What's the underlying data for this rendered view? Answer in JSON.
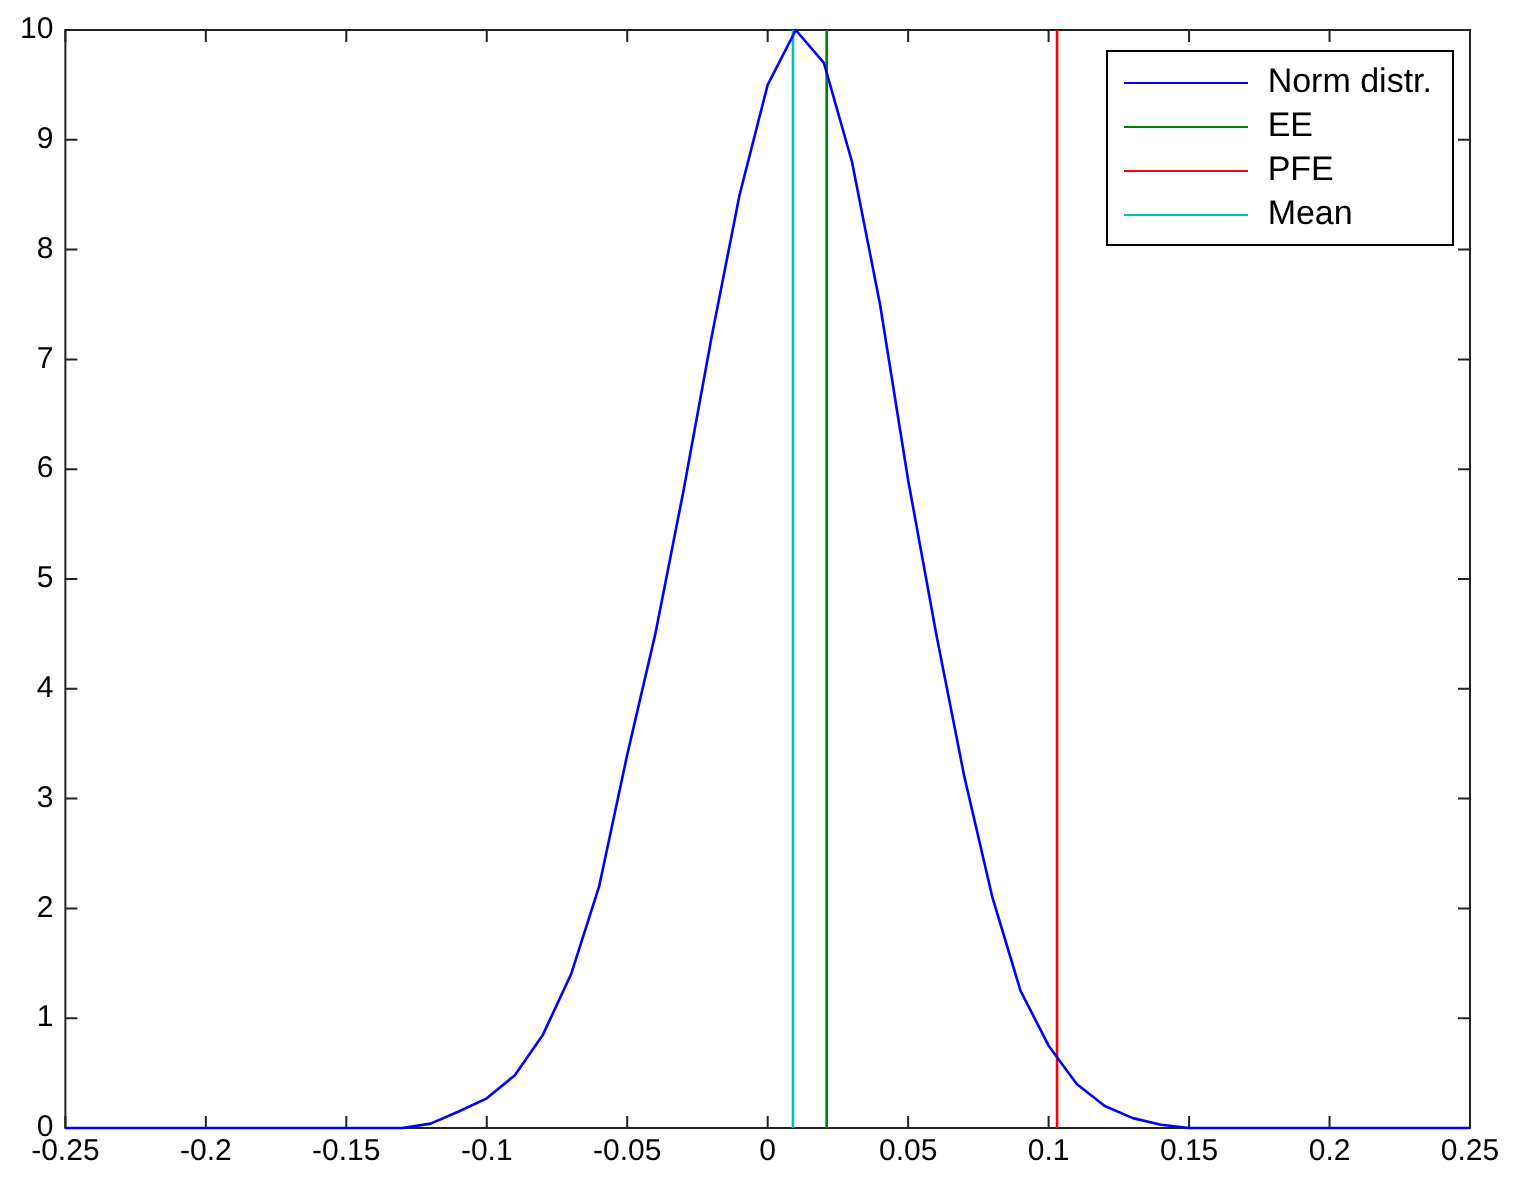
{
  "chart_data": {
    "type": "line",
    "xlim": [
      -0.25,
      0.25
    ],
    "ylim": [
      0,
      10
    ],
    "xticks": [
      -0.25,
      -0.2,
      -0.15,
      -0.1,
      -0.05,
      0,
      0.05,
      0.1,
      0.15,
      0.2,
      0.25
    ],
    "yticks": [
      0,
      1,
      2,
      3,
      4,
      5,
      6,
      7,
      8,
      9,
      10
    ],
    "grid": false,
    "legend": "top right",
    "marker": "none",
    "line_style": "solid",
    "series": [
      {
        "name": "Norm distr.",
        "color": "#0000ff",
        "x": [
          -0.25,
          -0.13,
          -0.12,
          -0.11,
          -0.1,
          -0.09,
          -0.08,
          -0.07,
          -0.06,
          -0.05,
          -0.04,
          -0.03,
          -0.02,
          -0.01,
          0,
          0.01,
          0.02,
          0.03,
          0.04,
          0.05,
          0.06,
          0.07,
          0.08,
          0.09,
          0.1,
          0.11,
          0.12,
          0.13,
          0.14,
          0.15,
          0.25
        ],
        "values": [
          0,
          0,
          0.04,
          0.15,
          0.27,
          0.48,
          0.85,
          1.4,
          2.2,
          3.4,
          4.5,
          5.8,
          7.2,
          8.5,
          9.5,
          10,
          9.7,
          8.8,
          7.5,
          5.9,
          4.5,
          3.2,
          2.1,
          1.25,
          0.75,
          0.4,
          0.2,
          0.09,
          0.03,
          0,
          0
        ]
      },
      {
        "name": "EE",
        "color": "#008000",
        "x": [
          0.021,
          0.021
        ],
        "values": [
          0,
          10
        ]
      },
      {
        "name": "PFE",
        "color": "#ff0000",
        "x": [
          0.103,
          0.103
        ],
        "values": [
          0,
          10
        ]
      },
      {
        "name": "Mean",
        "color": "#00bfbf",
        "x": [
          0.009,
          0.009
        ],
        "values": [
          0,
          10
        ]
      }
    ]
  }
}
